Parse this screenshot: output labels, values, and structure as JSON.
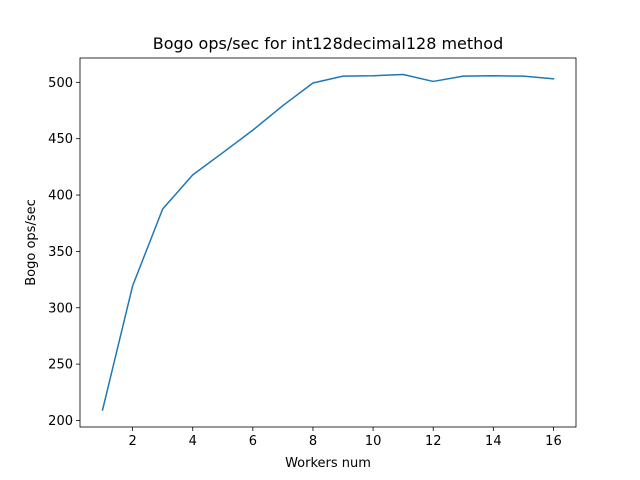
{
  "chart_data": {
    "type": "line",
    "title": "Bogo ops/sec for int128decimal128 method",
    "xlabel": "Workers num",
    "ylabel": "Bogo ops/sec",
    "x_ticks": [
      2,
      4,
      6,
      8,
      10,
      12,
      14,
      16
    ],
    "y_ticks": [
      200,
      250,
      300,
      350,
      400,
      450,
      500
    ],
    "xlim": [
      0.25,
      16.75
    ],
    "ylim": [
      194.2,
      521.6
    ],
    "grid": false,
    "series": [
      {
        "color": "#1f77b4",
        "x": [
          1,
          2,
          3,
          4,
          5,
          6,
          7,
          8,
          9,
          10,
          11,
          12,
          13,
          14,
          15,
          16
        ],
        "y": [
          209.3,
          319.4,
          387.6,
          417.9,
          437.6,
          457.6,
          479.4,
          499.4,
          505.5,
          505.9,
          507.0,
          500.8,
          505.5,
          505.8,
          505.5,
          503.1
        ]
      }
    ]
  }
}
